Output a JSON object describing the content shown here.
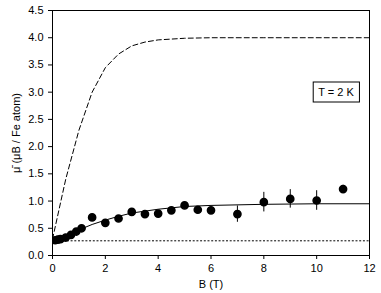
{
  "chart_data": {
    "type": "scatter",
    "x_label": "B (T)",
    "y_label": "μ̄ (μB / Fe atom)",
    "annotations": [
      {
        "text": "T = 2 K"
      }
    ],
    "xlim": [
      0,
      12
    ],
    "xticks": [
      0,
      2,
      4,
      6,
      8,
      10,
      12
    ],
    "ylim": [
      0,
      4.5
    ],
    "yticks": [
      {
        "value": 0,
        "label": "0.0"
      },
      {
        "value": 0.5,
        "label": "0.5"
      },
      {
        "value": 1,
        "label": "1.0"
      },
      {
        "value": 1.5,
        "label": "1.5"
      },
      {
        "value": 2,
        "label": "2.0"
      },
      {
        "value": 2.5,
        "label": "2.5"
      },
      {
        "value": 3,
        "label": "3.0"
      },
      {
        "value": 3.5,
        "label": "3.5"
      },
      {
        "value": 4,
        "label": "4.0"
      },
      {
        "value": 4.5,
        "label": "4.5"
      }
    ],
    "grid": false,
    "series": [
      {
        "type": "scatter",
        "marker": "circle",
        "color": "#000000",
        "x": [
          0.1,
          0.2,
          0.3,
          0.5,
          0.7,
          0.9,
          1.1,
          1.5,
          2.0,
          2.5,
          3.0,
          3.5,
          4.0,
          4.5,
          5.0,
          5.5,
          6.0,
          7.0,
          8.0,
          9.0,
          10.0,
          11.0
        ],
        "values": [
          0.28,
          0.29,
          0.3,
          0.33,
          0.38,
          0.44,
          0.5,
          0.7,
          0.6,
          0.68,
          0.8,
          0.76,
          0.77,
          0.83,
          0.92,
          0.84,
          0.83,
          0.76,
          0.98,
          1.04,
          1.01,
          1.22
        ],
        "errors": [
          0.02,
          0.02,
          0.02,
          0.02,
          0.02,
          0.02,
          0.03,
          0.04,
          0.04,
          0.04,
          0.05,
          0.05,
          0.05,
          0.05,
          0.05,
          0.05,
          0.06,
          0.15,
          0.18,
          0.17,
          0.18,
          0.07
        ]
      },
      {
        "type": "line",
        "line_style": "solid",
        "color": "#000000",
        "x": [
          0,
          0.5,
          1,
          1.5,
          2,
          2.5,
          3,
          4,
          5,
          6,
          8,
          10,
          12
        ],
        "values": [
          0.28,
          0.36,
          0.47,
          0.57,
          0.65,
          0.72,
          0.78,
          0.85,
          0.9,
          0.92,
          0.94,
          0.95,
          0.95
        ]
      },
      {
        "type": "line",
        "line_style": "dashed",
        "color": "#000000",
        "x": [
          0,
          0.25,
          0.5,
          1,
          1.5,
          2,
          2.5,
          3,
          3.5,
          4,
          5,
          6,
          8,
          12
        ],
        "values": [
          0.3,
          0.85,
          1.4,
          2.3,
          3.0,
          3.45,
          3.7,
          3.85,
          3.92,
          3.96,
          3.99,
          4.0,
          4.0,
          4.0
        ]
      },
      {
        "type": "line",
        "line_style": "dotted",
        "color": "#000000",
        "x": [
          0,
          12
        ],
        "values": [
          0.27,
          0.27
        ]
      }
    ]
  }
}
